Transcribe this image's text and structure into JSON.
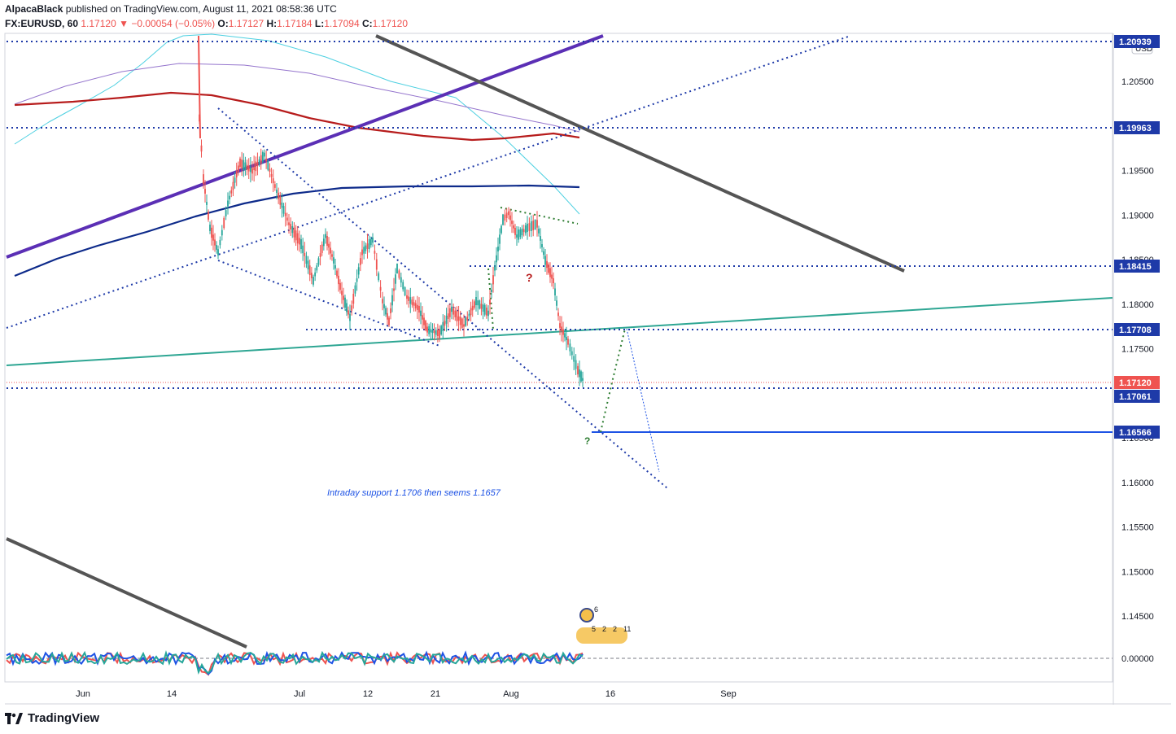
{
  "header": {
    "author": "AlpacaBlack",
    "published_text": "published on TradingView.com, August 11, 2021 08:58:36 UTC",
    "symbol": "FX:EURUSD, 60",
    "last": "1.17120",
    "change": "▼ −0.00054 (−0.05%)",
    "o_label": "O:",
    "o_value": "1.17127",
    "h_label": "H:",
    "h_value": "1.17184",
    "l_label": "L:",
    "l_value": "1.17094",
    "c_label": "C:",
    "c_value": "1.17120"
  },
  "footer": {
    "brand": "TradingView"
  },
  "colors": {
    "up": "#26a69a",
    "down": "#ef5350",
    "blue_label": "#1e53e5",
    "purple_trend": "#5b2fb5",
    "grey_trend": "#555555",
    "teal_trend": "#2ea693",
    "ma_red": "#b71c1c",
    "ma_purple": "#9575cd",
    "ma_cyan": "#4dd0e1",
    "ma_navy": "#0d2a8a"
  },
  "chart_data": {
    "type": "candlestick",
    "title": "",
    "currency": "USD",
    "y_axis": {
      "ylim": [
        1.1405,
        1.211
      ],
      "ticks": [
        "1.20500",
        "1.20000",
        "1.19500",
        "1.19000",
        "1.18500",
        "1.18000",
        "1.17500",
        "1.17000",
        "1.16500",
        "1.16000",
        "1.15500",
        "1.15000",
        "1.14500"
      ]
    },
    "x_axis": {
      "ticks": [
        "Jun",
        "14",
        "Jul",
        "12",
        "21",
        "Aug",
        "16",
        "Sep"
      ]
    },
    "price_labels": [
      {
        "value": "1.20939",
        "kind": "level"
      },
      {
        "value": "1.19963",
        "kind": "level"
      },
      {
        "value": "1.18415",
        "kind": "level"
      },
      {
        "value": "1.17708",
        "kind": "level"
      },
      {
        "value": "1.17120",
        "kind": "last"
      },
      {
        "value": "1.17061",
        "kind": "level"
      },
      {
        "value": "1.16566",
        "kind": "level"
      }
    ],
    "annotation": "Intraday support 1.1706 then seems 1.1657",
    "question_marks": [
      "?",
      "?"
    ],
    "oscillator": {
      "zero_label": "0.00000"
    },
    "events": {
      "top_count": "6",
      "bottom_counts": [
        "5",
        "2",
        "2",
        "11"
      ]
    }
  }
}
